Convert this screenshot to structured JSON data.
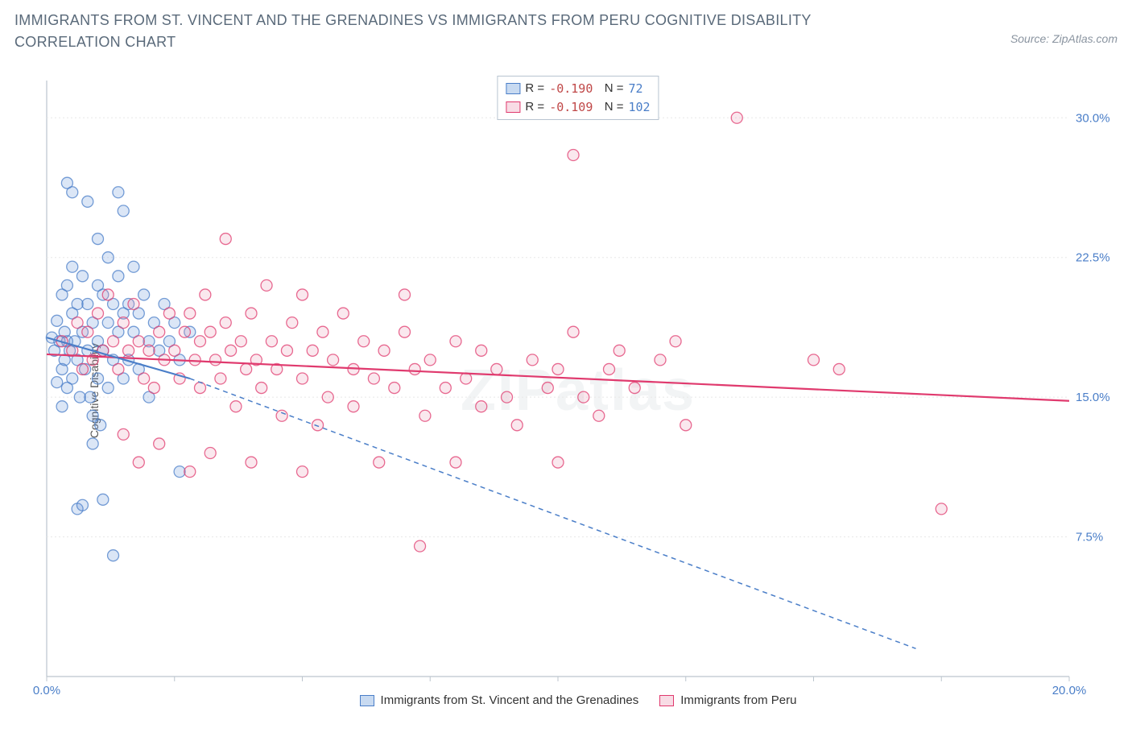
{
  "title": "IMMIGRANTS FROM ST. VINCENT AND THE GRENADINES VS IMMIGRANTS FROM PERU COGNITIVE DISABILITY CORRELATION CHART",
  "source": "Source: ZipAtlas.com",
  "watermark": "ZIPatlas",
  "chart": {
    "type": "scatter",
    "ylabel": "Cognitive Disability",
    "xlim": [
      0,
      20
    ],
    "ylim": [
      0,
      32
    ],
    "x_ticks": [
      0,
      2.5,
      5,
      7.5,
      10,
      12.5,
      15,
      17.5,
      20
    ],
    "x_tick_labels": {
      "0": "0.0%",
      "20": "20.0%"
    },
    "y_ticks": [
      7.5,
      15.0,
      22.5,
      30.0
    ],
    "y_tick_labels": [
      "7.5%",
      "15.0%",
      "22.5%",
      "30.0%"
    ],
    "grid_color": "#e8e8e8",
    "axis_color": "#bcc5ce",
    "background_color": "#ffffff",
    "marker_radius": 7,
    "marker_fill_opacity": 0.22,
    "marker_stroke_width": 1.3,
    "series": [
      {
        "name": "Immigrants from St. Vincent and the Grenadines",
        "color": "#5b8fd6",
        "stroke": "#4a7ec8",
        "R": "-0.190",
        "N": "72",
        "regression": {
          "x1": 0.0,
          "y1": 18.2,
          "x2": 2.8,
          "y2": 16.0,
          "dash_from_x": 2.8,
          "dash_to_x": 17.0,
          "dash_to_y": 1.5
        },
        "points": [
          [
            0.1,
            18.2
          ],
          [
            0.15,
            17.5
          ],
          [
            0.2,
            19.1
          ],
          [
            0.2,
            15.8
          ],
          [
            0.25,
            18.0
          ],
          [
            0.3,
            20.5
          ],
          [
            0.3,
            16.5
          ],
          [
            0.3,
            14.5
          ],
          [
            0.35,
            18.5
          ],
          [
            0.35,
            17.0
          ],
          [
            0.4,
            21.0
          ],
          [
            0.4,
            18.0
          ],
          [
            0.4,
            15.5
          ],
          [
            0.45,
            17.5
          ],
          [
            0.5,
            22.0
          ],
          [
            0.5,
            19.5
          ],
          [
            0.5,
            16.0
          ],
          [
            0.55,
            18.0
          ],
          [
            0.6,
            20.0
          ],
          [
            0.6,
            17.0
          ],
          [
            0.65,
            15.0
          ],
          [
            0.7,
            21.5
          ],
          [
            0.7,
            18.5
          ],
          [
            0.75,
            16.5
          ],
          [
            0.8,
            25.5
          ],
          [
            0.8,
            20.0
          ],
          [
            0.8,
            17.5
          ],
          [
            0.85,
            15.0
          ],
          [
            0.9,
            19.0
          ],
          [
            0.9,
            14.0
          ],
          [
            1.0,
            23.5
          ],
          [
            1.0,
            21.0
          ],
          [
            1.0,
            18.0
          ],
          [
            1.0,
            16.0
          ],
          [
            1.05,
            13.5
          ],
          [
            1.1,
            20.5
          ],
          [
            1.1,
            17.5
          ],
          [
            1.2,
            22.5
          ],
          [
            1.2,
            19.0
          ],
          [
            1.2,
            15.5
          ],
          [
            1.3,
            20.0
          ],
          [
            1.3,
            17.0
          ],
          [
            1.4,
            26.0
          ],
          [
            1.4,
            21.5
          ],
          [
            1.4,
            18.5
          ],
          [
            1.5,
            25.0
          ],
          [
            1.5,
            19.5
          ],
          [
            1.5,
            16.0
          ],
          [
            1.6,
            20.0
          ],
          [
            1.6,
            17.0
          ],
          [
            1.7,
            22.0
          ],
          [
            1.7,
            18.5
          ],
          [
            1.8,
            19.5
          ],
          [
            1.8,
            16.5
          ],
          [
            1.9,
            20.5
          ],
          [
            2.0,
            18.0
          ],
          [
            2.0,
            15.0
          ],
          [
            2.1,
            19.0
          ],
          [
            2.2,
            17.5
          ],
          [
            2.3,
            20.0
          ],
          [
            2.4,
            18.0
          ],
          [
            2.5,
            19.0
          ],
          [
            2.6,
            17.0
          ],
          [
            2.8,
            18.5
          ],
          [
            0.6,
            9.0
          ],
          [
            0.7,
            9.2
          ],
          [
            0.9,
            12.5
          ],
          [
            1.1,
            9.5
          ],
          [
            1.3,
            6.5
          ],
          [
            0.4,
            26.5
          ],
          [
            0.5,
            26.0
          ],
          [
            2.6,
            11.0
          ]
        ]
      },
      {
        "name": "Immigrants from Peru",
        "color": "#e995b1",
        "stroke": "#e03a6e",
        "R": "-0.109",
        "N": "102",
        "regression": {
          "x1": 0.0,
          "y1": 17.3,
          "x2": 20.0,
          "y2": 14.8
        },
        "points": [
          [
            0.3,
            18.0
          ],
          [
            0.5,
            17.5
          ],
          [
            0.6,
            19.0
          ],
          [
            0.7,
            16.5
          ],
          [
            0.8,
            18.5
          ],
          [
            0.9,
            17.0
          ],
          [
            1.0,
            19.5
          ],
          [
            1.1,
            17.5
          ],
          [
            1.2,
            20.5
          ],
          [
            1.3,
            18.0
          ],
          [
            1.4,
            16.5
          ],
          [
            1.5,
            19.0
          ],
          [
            1.6,
            17.5
          ],
          [
            1.7,
            20.0
          ],
          [
            1.8,
            18.0
          ],
          [
            1.9,
            16.0
          ],
          [
            2.0,
            17.5
          ],
          [
            2.1,
            15.5
          ],
          [
            2.2,
            18.5
          ],
          [
            2.3,
            17.0
          ],
          [
            2.4,
            19.5
          ],
          [
            2.5,
            17.5
          ],
          [
            2.6,
            16.0
          ],
          [
            2.7,
            18.5
          ],
          [
            2.8,
            19.5
          ],
          [
            2.9,
            17.0
          ],
          [
            3.0,
            18.0
          ],
          [
            3.0,
            15.5
          ],
          [
            3.1,
            20.5
          ],
          [
            3.2,
            18.5
          ],
          [
            3.3,
            17.0
          ],
          [
            3.4,
            16.0
          ],
          [
            3.5,
            19.0
          ],
          [
            3.5,
            23.5
          ],
          [
            3.6,
            17.5
          ],
          [
            3.7,
            14.5
          ],
          [
            3.8,
            18.0
          ],
          [
            3.9,
            16.5
          ],
          [
            4.0,
            19.5
          ],
          [
            4.1,
            17.0
          ],
          [
            4.2,
            15.5
          ],
          [
            4.3,
            21.0
          ],
          [
            4.4,
            18.0
          ],
          [
            4.5,
            16.5
          ],
          [
            4.6,
            14.0
          ],
          [
            4.7,
            17.5
          ],
          [
            4.8,
            19.0
          ],
          [
            5.0,
            16.0
          ],
          [
            5.0,
            20.5
          ],
          [
            5.2,
            17.5
          ],
          [
            5.3,
            13.5
          ],
          [
            5.4,
            18.5
          ],
          [
            5.5,
            15.0
          ],
          [
            5.6,
            17.0
          ],
          [
            5.8,
            19.5
          ],
          [
            6.0,
            16.5
          ],
          [
            6.0,
            14.5
          ],
          [
            6.2,
            18.0
          ],
          [
            6.4,
            16.0
          ],
          [
            6.5,
            11.5
          ],
          [
            6.6,
            17.5
          ],
          [
            6.8,
            15.5
          ],
          [
            7.0,
            18.5
          ],
          [
            7.0,
            20.5
          ],
          [
            7.2,
            16.5
          ],
          [
            7.3,
            7.0
          ],
          [
            7.4,
            14.0
          ],
          [
            7.5,
            17.0
          ],
          [
            7.8,
            15.5
          ],
          [
            8.0,
            18.0
          ],
          [
            8.0,
            11.5
          ],
          [
            8.2,
            16.0
          ],
          [
            8.5,
            17.5
          ],
          [
            8.5,
            14.5
          ],
          [
            8.8,
            16.5
          ],
          [
            9.0,
            15.0
          ],
          [
            9.2,
            13.5
          ],
          [
            9.5,
            17.0
          ],
          [
            9.8,
            15.5
          ],
          [
            10.0,
            16.5
          ],
          [
            10.0,
            11.5
          ],
          [
            10.3,
            18.5
          ],
          [
            10.5,
            15.0
          ],
          [
            10.8,
            14.0
          ],
          [
            11.0,
            16.5
          ],
          [
            11.2,
            17.5
          ],
          [
            11.5,
            15.5
          ],
          [
            12.0,
            17.0
          ],
          [
            12.3,
            18.0
          ],
          [
            12.5,
            13.5
          ],
          [
            13.5,
            30.0
          ],
          [
            10.3,
            28.0
          ],
          [
            15.0,
            17.0
          ],
          [
            15.5,
            16.5
          ],
          [
            17.5,
            9.0
          ],
          [
            1.5,
            13.0
          ],
          [
            1.8,
            11.5
          ],
          [
            2.2,
            12.5
          ],
          [
            2.8,
            11.0
          ],
          [
            3.2,
            12.0
          ],
          [
            4.0,
            11.5
          ],
          [
            5.0,
            11.0
          ]
        ]
      }
    ]
  },
  "bottom_legend": {
    "a": "Immigrants from St. Vincent and the Grenadines",
    "b": "Immigrants from Peru"
  }
}
